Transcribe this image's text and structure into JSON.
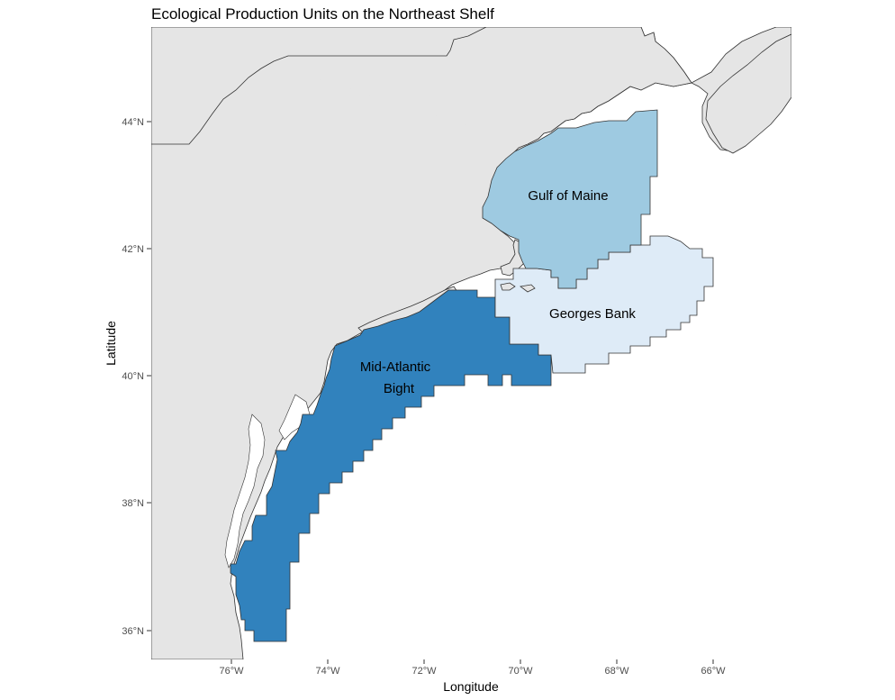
{
  "title": "Ecological Production Units on the Northeast Shelf",
  "xlabel": "Longitude",
  "ylabel": "Latitude",
  "colors": {
    "land": "#e5e5e5",
    "water": "#ffffff",
    "gulf_of_maine": "#9ecae1",
    "georges_bank": "#deebf7",
    "mid_atlantic_bight": "#3182bd",
    "tick_text": "#4d4d4d"
  },
  "x_ticks": [
    "76°W",
    "74°W",
    "72°W",
    "70°W",
    "68°W",
    "66°W"
  ],
  "y_ticks": [
    "44°N",
    "42°N",
    "40°N",
    "38°N",
    "36°N"
  ],
  "regions": {
    "gulf_of_maine": "Gulf of Maine",
    "georges_bank": "Georges Bank",
    "mid_atlantic_bight_line1": "Mid-Atlantic",
    "mid_atlantic_bight_line2": "Bight"
  }
}
